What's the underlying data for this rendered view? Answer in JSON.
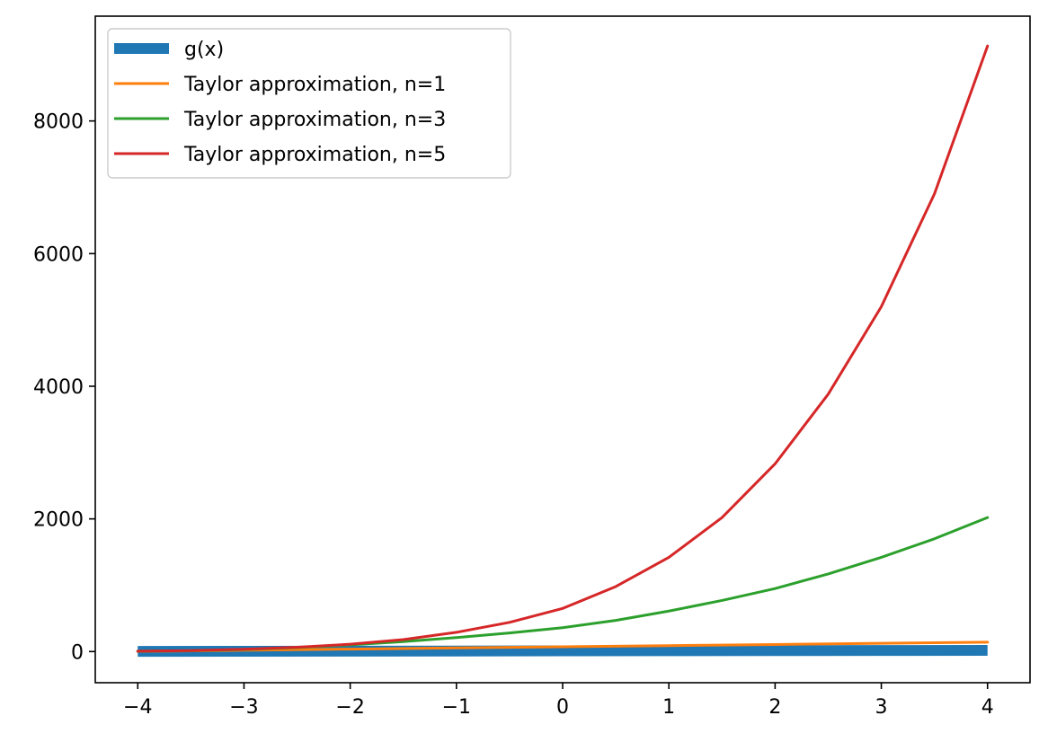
{
  "chart_data": {
    "type": "line",
    "title": "",
    "xlabel": "",
    "ylabel": "",
    "xlim": [
      -4.4,
      4.4
    ],
    "ylim": [
      -470,
      9580
    ],
    "xticks": [
      -4,
      -3,
      -2,
      -1,
      0,
      1,
      2,
      3,
      4
    ],
    "xtick_labels": [
      "−4",
      "−3",
      "−2",
      "−1",
      "0",
      "1",
      "2",
      "3",
      "4"
    ],
    "yticks": [
      0,
      2000,
      4000,
      6000,
      8000
    ],
    "ytick_labels": [
      "0",
      "2000",
      "4000",
      "6000",
      "8000"
    ],
    "grid": false,
    "legend_position": "top-left",
    "series": [
      {
        "name": "g(x)",
        "color": "#1f77b4",
        "x": [
          -4,
          -3,
          -2,
          -1,
          0,
          1,
          2,
          3,
          4
        ],
        "y": [
          2,
          4,
          6,
          8,
          10,
          12,
          14,
          16,
          18
        ]
      },
      {
        "name": "Taylor approximation, n=1",
        "color": "#ff7f0e",
        "x": [
          -4,
          -3,
          -2,
          -1,
          0,
          1,
          2,
          3,
          4
        ],
        "y": [
          2,
          19,
          37,
          54,
          72,
          89,
          106,
          124,
          141
        ]
      },
      {
        "name": "Taylor approximation, n=3",
        "color": "#2ca02c",
        "x": [
          -4,
          -3.5,
          -3,
          -2.5,
          -2,
          -1.5,
          -1,
          -0.5,
          0,
          0.5,
          1,
          1.5,
          2,
          2.5,
          3,
          3.5,
          4
        ],
        "y": [
          5,
          12,
          30,
          60,
          100,
          150,
          210,
          280,
          360,
          470,
          610,
          770,
          950,
          1170,
          1420,
          1700,
          2020
        ]
      },
      {
        "name": "Taylor approximation, n=5",
        "color": "#d62728",
        "x": [
          -4,
          -3.5,
          -3,
          -2.5,
          -2,
          -1.5,
          -1,
          -0.5,
          0,
          0.5,
          1,
          1.5,
          2,
          2.5,
          3,
          3.5,
          4
        ],
        "y": [
          5,
          15,
          35,
          65,
          110,
          180,
          290,
          440,
          650,
          980,
          1420,
          2020,
          2830,
          3880,
          5200,
          6900,
          9130
        ]
      }
    ]
  }
}
